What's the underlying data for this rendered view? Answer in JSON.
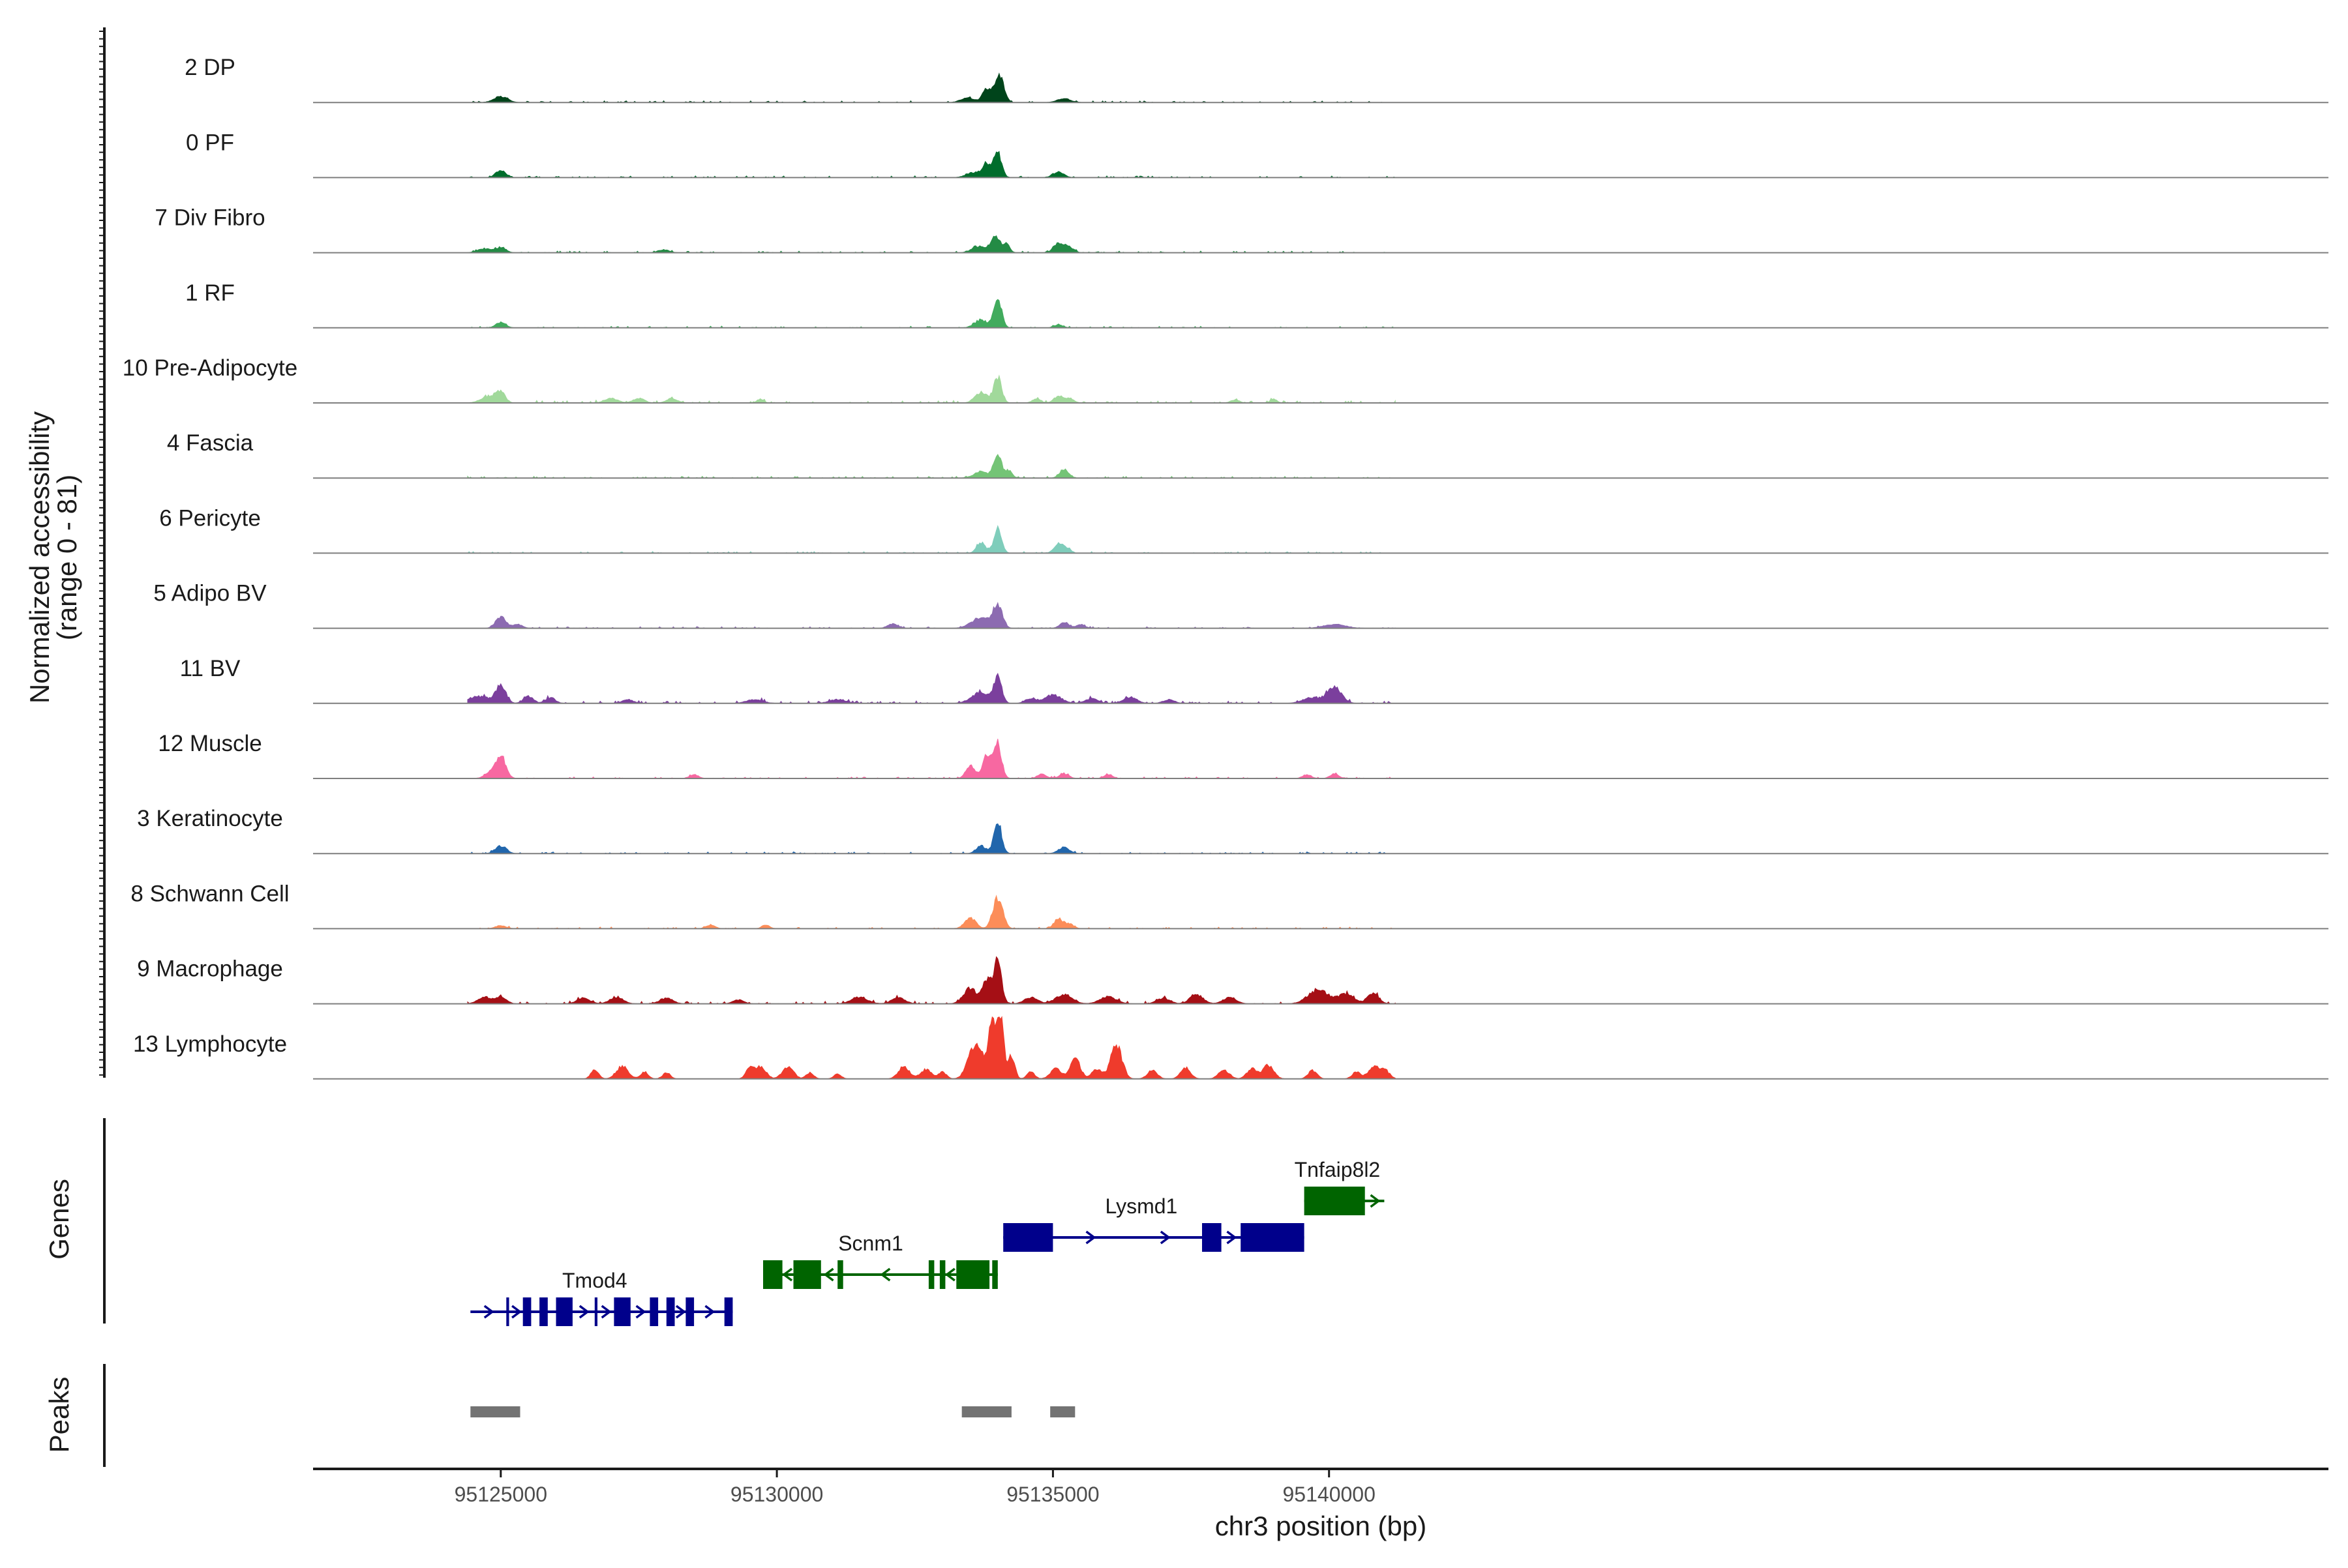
{
  "chart_data": {
    "type": "area",
    "title": "",
    "coverage_axis_title": "Normalized accessibility",
    "coverage_axis_subtitle": "(range 0 - 81)",
    "y_range": [
      0,
      81
    ],
    "xlabel": "chr3 position (bp)",
    "xlim": [
      95121600,
      95158100
    ],
    "x_ticks": [
      95125000,
      95130000,
      95135000,
      95140000
    ],
    "x_tick_labels": [
      "95125000",
      "95130000",
      "95135000",
      "95140000"
    ],
    "genes_label": "Genes",
    "peaks_label": "Peaks",
    "tracks": [
      {
        "name": "2 DP",
        "color": "#00441b",
        "noise": 2,
        "peaks": [
          [
            95125000,
            120,
            8
          ],
          [
            95133450,
            120,
            6
          ],
          [
            95133800,
            80,
            17
          ],
          [
            95134000,
            70,
            30
          ],
          [
            95134100,
            60,
            14
          ],
          [
            95135200,
            120,
            5
          ]
        ]
      },
      {
        "name": "0 PF",
        "color": "#006d2c",
        "noise": 2,
        "peaks": [
          [
            95125000,
            90,
            10
          ],
          [
            95133550,
            130,
            6
          ],
          [
            95133800,
            80,
            18
          ],
          [
            95134000,
            70,
            33
          ],
          [
            95135100,
            100,
            7
          ]
        ]
      },
      {
        "name": "7 Div Fibro",
        "color": "#238b45",
        "noise": 2,
        "peaks": [
          [
            95124700,
            120,
            5
          ],
          [
            95125000,
            90,
            7
          ],
          [
            95127950,
            100,
            4
          ],
          [
            95133650,
            120,
            8
          ],
          [
            95133950,
            80,
            22
          ],
          [
            95134150,
            60,
            12
          ],
          [
            95135100,
            90,
            12
          ],
          [
            95135300,
            80,
            7
          ]
        ]
      },
      {
        "name": "1 RF",
        "color": "#41ab5d",
        "noise": 2,
        "peaks": [
          [
            95125000,
            90,
            7
          ],
          [
            95133700,
            120,
            10
          ],
          [
            95134000,
            70,
            38
          ],
          [
            95135100,
            80,
            4
          ]
        ]
      },
      {
        "name": "10 Pre-Adipocyte",
        "color": "#a1d99b",
        "noise": 3,
        "peaks": [
          [
            95124800,
            150,
            9
          ],
          [
            95125000,
            80,
            12
          ],
          [
            95127000,
            120,
            6
          ],
          [
            95127500,
            100,
            6
          ],
          [
            95128100,
            100,
            6
          ],
          [
            95129700,
            60,
            5
          ],
          [
            95133700,
            110,
            14
          ],
          [
            95134000,
            70,
            33
          ],
          [
            95134700,
            80,
            5
          ],
          [
            95135100,
            80,
            9
          ],
          [
            95135300,
            80,
            6
          ],
          [
            95138300,
            80,
            4
          ],
          [
            95139000,
            60,
            5
          ]
        ]
      },
      {
        "name": "4 Fascia",
        "color": "#74c476",
        "noise": 2,
        "peaks": [
          [
            95133700,
            130,
            8
          ],
          [
            95134000,
            70,
            32
          ],
          [
            95134200,
            60,
            10
          ],
          [
            95135200,
            80,
            11
          ]
        ]
      },
      {
        "name": "6 Pericyte",
        "color": "#7fcdbb",
        "noise": 2,
        "peaks": [
          [
            95133700,
            80,
            14
          ],
          [
            95134000,
            70,
            33
          ],
          [
            95135100,
            80,
            12
          ],
          [
            95135250,
            70,
            6
          ]
        ]
      },
      {
        "name": "5 Adipo BV",
        "color": "#8c6bb1",
        "noise": 2,
        "peaks": [
          [
            95125000,
            90,
            15
          ],
          [
            95125300,
            90,
            5
          ],
          [
            95132100,
            90,
            6
          ],
          [
            95133700,
            170,
            14
          ],
          [
            95134000,
            80,
            30
          ],
          [
            95135200,
            80,
            7
          ],
          [
            95135500,
            80,
            5
          ],
          [
            95140100,
            200,
            5
          ]
        ]
      },
      {
        "name": "11 BV",
        "color": "#7b3f9d",
        "noise": 3,
        "peaks": [
          [
            95124600,
            200,
            9
          ],
          [
            95125000,
            90,
            22
          ],
          [
            95125500,
            90,
            9
          ],
          [
            95125900,
            90,
            7
          ],
          [
            95127300,
            100,
            5
          ],
          [
            95129600,
            150,
            5
          ],
          [
            95131100,
            150,
            5
          ],
          [
            95133700,
            170,
            14
          ],
          [
            95134000,
            70,
            33
          ],
          [
            95134600,
            100,
            6
          ],
          [
            95135000,
            150,
            11
          ],
          [
            95135700,
            120,
            6
          ],
          [
            95136400,
            120,
            8
          ],
          [
            95137100,
            100,
            5
          ],
          [
            95139700,
            170,
            7
          ],
          [
            95140100,
            130,
            20
          ]
        ]
      },
      {
        "name": "12 Muscle",
        "color": "#f768a1",
        "noise": 2,
        "peaks": [
          [
            95124800,
            100,
            7
          ],
          [
            95125000,
            90,
            30
          ],
          [
            95128500,
            80,
            5
          ],
          [
            95133500,
            80,
            17
          ],
          [
            95133800,
            80,
            30
          ],
          [
            95134000,
            70,
            45
          ],
          [
            95134800,
            80,
            6
          ],
          [
            95135200,
            90,
            6
          ],
          [
            95136000,
            80,
            5
          ],
          [
            95139600,
            80,
            5
          ],
          [
            95140100,
            80,
            6
          ]
        ]
      },
      {
        "name": "3 Keratinocyte",
        "color": "#2166ac",
        "noise": 2,
        "peaks": [
          [
            95125000,
            100,
            10
          ],
          [
            95133700,
            90,
            10
          ],
          [
            95134000,
            70,
            42
          ],
          [
            95135200,
            100,
            8
          ]
        ]
      },
      {
        "name": "8 Schwann Cell",
        "color": "#fc8d59",
        "noise": 2,
        "peaks": [
          [
            95125000,
            100,
            4
          ],
          [
            95128800,
            80,
            5
          ],
          [
            95129800,
            70,
            5
          ],
          [
            95133500,
            100,
            14
          ],
          [
            95134000,
            90,
            40
          ],
          [
            95135100,
            80,
            13
          ],
          [
            95135300,
            80,
            6
          ]
        ]
      },
      {
        "name": "9 Macrophage",
        "color": "#a50f15",
        "noise": 3,
        "peaks": [
          [
            95124700,
            120,
            9
          ],
          [
            95125000,
            100,
            9
          ],
          [
            95126500,
            120,
            7
          ],
          [
            95127100,
            120,
            9
          ],
          [
            95128000,
            120,
            7
          ],
          [
            95129300,
            100,
            5
          ],
          [
            95131500,
            150,
            8
          ],
          [
            95132200,
            120,
            8
          ],
          [
            95133500,
            120,
            20
          ],
          [
            95133800,
            80,
            30
          ],
          [
            95134000,
            70,
            55
          ],
          [
            95134600,
            120,
            8
          ],
          [
            95135200,
            150,
            12
          ],
          [
            95136000,
            150,
            9
          ],
          [
            95137000,
            120,
            7
          ],
          [
            95137600,
            120,
            12
          ],
          [
            95138200,
            120,
            8
          ],
          [
            95139800,
            180,
            18
          ],
          [
            95140300,
            150,
            12
          ],
          [
            95140800,
            100,
            14
          ]
        ]
      },
      {
        "name": "13 Lymphocyte",
        "color": "#ef3b2c",
        "noise": 0,
        "peaks": [
          [
            95126700,
            70,
            12
          ],
          [
            95127200,
            110,
            16
          ],
          [
            95127600,
            70,
            9
          ],
          [
            95128000,
            70,
            8
          ],
          [
            95129500,
            70,
            12
          ],
          [
            95129700,
            100,
            16
          ],
          [
            95130200,
            100,
            16
          ],
          [
            95130600,
            70,
            8
          ],
          [
            95131100,
            70,
            6
          ],
          [
            95132300,
            100,
            16
          ],
          [
            95132700,
            100,
            12
          ],
          [
            95133000,
            70,
            9
          ],
          [
            95133600,
            130,
            45
          ],
          [
            95133900,
            70,
            75
          ],
          [
            95134050,
            60,
            81
          ],
          [
            95134250,
            60,
            30
          ],
          [
            95134600,
            70,
            9
          ],
          [
            95135050,
            100,
            13
          ],
          [
            95135400,
            90,
            28
          ],
          [
            95135800,
            100,
            12
          ],
          [
            95136150,
            100,
            45
          ],
          [
            95136800,
            90,
            11
          ],
          [
            95137400,
            90,
            15
          ],
          [
            95138100,
            100,
            11
          ],
          [
            95138600,
            90,
            13
          ],
          [
            95138900,
            100,
            18
          ],
          [
            95139700,
            80,
            11
          ],
          [
            95140500,
            80,
            9
          ],
          [
            95140800,
            90,
            16
          ],
          [
            95141000,
            90,
            12
          ]
        ]
      }
    ],
    "genes": [
      {
        "name": "Tmod4",
        "color": "#00008b",
        "row": 3,
        "start": 95124450,
        "end": 95129200,
        "strand": "+",
        "label_pos": 95126700,
        "exons": [
          [
            95125100,
            95125150
          ],
          [
            95125400,
            95125550
          ],
          [
            95125700,
            95125850
          ],
          [
            95126000,
            95126300
          ],
          [
            95126700,
            95126750
          ],
          [
            95127050,
            95127350
          ],
          [
            95127700,
            95127850
          ],
          [
            95128000,
            95128150
          ],
          [
            95128350,
            95128500
          ],
          [
            95129050,
            95129200
          ]
        ]
      },
      {
        "name": "Scnm1",
        "color": "#006400",
        "row": 2,
        "start": 95129750,
        "end": 95134000,
        "strand": "-",
        "label_pos": 95131700,
        "exons": [
          [
            95129750,
            95130100
          ],
          [
            95130300,
            95130800
          ],
          [
            95131100,
            95131200
          ],
          [
            95132750,
            95132850
          ],
          [
            95132950,
            95133050
          ],
          [
            95133250,
            95133850
          ],
          [
            95133900,
            95134000
          ]
        ]
      },
      {
        "name": "Lysmd1",
        "color": "#00008b",
        "row": 1,
        "start": 95134100,
        "end": 95139550,
        "strand": "+",
        "label_pos": 95136600,
        "exons": [
          [
            95134100,
            95135000
          ],
          [
            95137700,
            95138050
          ],
          [
            95138400,
            95139550
          ]
        ]
      },
      {
        "name": "Tnfaip8l2",
        "color": "#006400",
        "row": 0,
        "start": 95139550,
        "end": 95141000,
        "strand": "+",
        "label_pos": 95140150,
        "exons": [
          [
            95139550,
            95140650
          ]
        ]
      }
    ],
    "peaks": [
      [
        95124450,
        95125350
      ],
      [
        95133350,
        95134250
      ],
      [
        95134950,
        95135400
      ]
    ],
    "peak_color": "#737373"
  }
}
